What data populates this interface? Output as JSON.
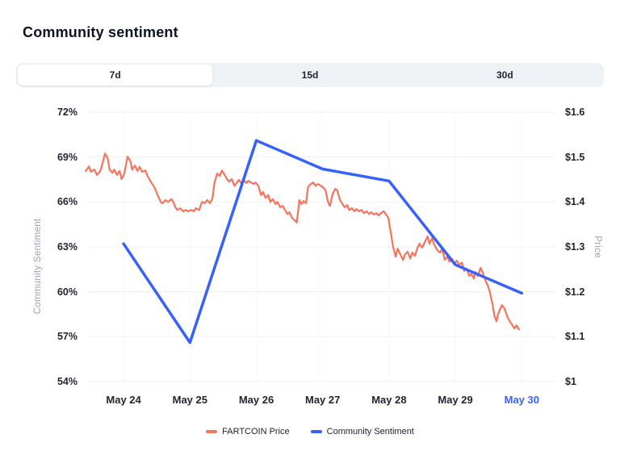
{
  "title": "Community sentiment",
  "tabs": [
    {
      "label": "7d",
      "active": true
    },
    {
      "label": "15d",
      "active": false
    },
    {
      "label": "30d",
      "active": false
    }
  ],
  "legend": {
    "items": [
      "FARTCOIN Price",
      "Community Sentiment"
    ]
  },
  "chart_data": {
    "type": "line",
    "title": "Community sentiment",
    "ylabel_left": "Community Sentiment",
    "ylabel_right": "Price",
    "grid": true,
    "legend_position": "bottom",
    "x_categories": [
      "May 24",
      "May 25",
      "May 26",
      "May 27",
      "May 28",
      "May 29",
      "May 30"
    ],
    "x_highlight_index": 6,
    "x_highlight_color": "#3861fb",
    "ylim_left": [
      54,
      72
    ],
    "ylim_right": [
      1.0,
      1.6
    ],
    "yticks_left": {
      "values": [
        72,
        69,
        66,
        63,
        60,
        57,
        54
      ],
      "labels": [
        "72%",
        "69%",
        "66%",
        "63%",
        "60%",
        "57%",
        "54%"
      ]
    },
    "yticks_right": {
      "values": [
        1.6,
        1.5,
        1.4,
        1.3,
        1.2,
        1.1,
        1.0
      ],
      "labels": [
        "$1.6",
        "$1.5",
        "$1.4",
        "$1.3",
        "$1.2",
        "$1.1",
        "$1"
      ]
    },
    "grid_color": "#eff2f5",
    "grid_color_vertical": "#f6f8fa",
    "series": [
      {
        "name": "FARTCOIN Price",
        "axis": "right",
        "color": "#f4765e",
        "unit": "$",
        "points": [
          [
            -0.57,
            1.469
          ],
          [
            -0.52,
            1.479
          ],
          [
            -0.49,
            1.467
          ],
          [
            -0.44,
            1.472
          ],
          [
            -0.4,
            1.46
          ],
          [
            -0.35,
            1.469
          ],
          [
            -0.32,
            1.485
          ],
          [
            -0.28,
            1.508
          ],
          [
            -0.24,
            1.497
          ],
          [
            -0.21,
            1.472
          ],
          [
            -0.17,
            1.465
          ],
          [
            -0.14,
            1.472
          ],
          [
            -0.1,
            1.46
          ],
          [
            -0.06,
            1.469
          ],
          [
            -0.03,
            1.451
          ],
          [
            0.01,
            1.463
          ],
          [
            0.06,
            1.501
          ],
          [
            0.1,
            1.492
          ],
          [
            0.13,
            1.472
          ],
          [
            0.17,
            1.481
          ],
          [
            0.21,
            1.469
          ],
          [
            0.24,
            1.478
          ],
          [
            0.28,
            1.467
          ],
          [
            0.33,
            1.47
          ],
          [
            0.36,
            1.458
          ],
          [
            0.41,
            1.445
          ],
          [
            0.47,
            1.431
          ],
          [
            0.52,
            1.413
          ],
          [
            0.56,
            1.4
          ],
          [
            0.59,
            1.397
          ],
          [
            0.63,
            1.404
          ],
          [
            0.67,
            1.4
          ],
          [
            0.72,
            1.406
          ],
          [
            0.75,
            1.4
          ],
          [
            0.78,
            1.388
          ],
          [
            0.81,
            1.382
          ],
          [
            0.85,
            1.386
          ],
          [
            0.9,
            1.379
          ],
          [
            0.94,
            1.382
          ],
          [
            0.97,
            1.379
          ],
          [
            1.02,
            1.382
          ],
          [
            1.06,
            1.379
          ],
          [
            1.09,
            1.386
          ],
          [
            1.14,
            1.382
          ],
          [
            1.18,
            1.4
          ],
          [
            1.22,
            1.397
          ],
          [
            1.26,
            1.404
          ],
          [
            1.3,
            1.397
          ],
          [
            1.34,
            1.408
          ],
          [
            1.37,
            1.443
          ],
          [
            1.41,
            1.463
          ],
          [
            1.45,
            1.458
          ],
          [
            1.48,
            1.47
          ],
          [
            1.52,
            1.461
          ],
          [
            1.56,
            1.451
          ],
          [
            1.59,
            1.445
          ],
          [
            1.63,
            1.451
          ],
          [
            1.67,
            1.436
          ],
          [
            1.7,
            1.442
          ],
          [
            1.74,
            1.449
          ],
          [
            1.77,
            1.442
          ],
          [
            1.81,
            1.449
          ],
          [
            1.85,
            1.442
          ],
          [
            1.88,
            1.447
          ],
          [
            1.92,
            1.443
          ],
          [
            1.96,
            1.44
          ],
          [
            1.99,
            1.443
          ],
          [
            2.03,
            1.436
          ],
          [
            2.07,
            1.415
          ],
          [
            2.1,
            1.422
          ],
          [
            2.14,
            1.409
          ],
          [
            2.18,
            1.415
          ],
          [
            2.21,
            1.4
          ],
          [
            2.25,
            1.406
          ],
          [
            2.29,
            1.395
          ],
          [
            2.32,
            1.4
          ],
          [
            2.36,
            1.388
          ],
          [
            2.4,
            1.391
          ],
          [
            2.43,
            1.382
          ],
          [
            2.47,
            1.373
          ],
          [
            2.5,
            1.377
          ],
          [
            2.54,
            1.364
          ],
          [
            2.58,
            1.359
          ],
          [
            2.61,
            1.354
          ],
          [
            2.65,
            1.404
          ],
          [
            2.68,
            1.395
          ],
          [
            2.71,
            1.402
          ],
          [
            2.75,
            1.397
          ],
          [
            2.78,
            1.433
          ],
          [
            2.82,
            1.44
          ],
          [
            2.86,
            1.443
          ],
          [
            2.89,
            1.436
          ],
          [
            2.93,
            1.44
          ],
          [
            2.97,
            1.436
          ],
          [
            3.0,
            1.433
          ],
          [
            3.04,
            1.427
          ],
          [
            3.08,
            1.4
          ],
          [
            3.11,
            1.391
          ],
          [
            3.15,
            1.418
          ],
          [
            3.19,
            1.429
          ],
          [
            3.22,
            1.426
          ],
          [
            3.26,
            1.404
          ],
          [
            3.3,
            1.395
          ],
          [
            3.33,
            1.388
          ],
          [
            3.37,
            1.393
          ],
          [
            3.4,
            1.382
          ],
          [
            3.44,
            1.386
          ],
          [
            3.48,
            1.379
          ],
          [
            3.51,
            1.384
          ],
          [
            3.55,
            1.379
          ],
          [
            3.59,
            1.382
          ],
          [
            3.62,
            1.375
          ],
          [
            3.66,
            1.379
          ],
          [
            3.7,
            1.373
          ],
          [
            3.73,
            1.377
          ],
          [
            3.77,
            1.372
          ],
          [
            3.81,
            1.375
          ],
          [
            3.84,
            1.37
          ],
          [
            3.88,
            1.375
          ],
          [
            3.92,
            1.379
          ],
          [
            3.95,
            1.373
          ],
          [
            3.99,
            1.364
          ],
          [
            4.03,
            1.328
          ],
          [
            4.06,
            1.301
          ],
          [
            4.1,
            1.278
          ],
          [
            4.13,
            1.296
          ],
          [
            4.17,
            1.283
          ],
          [
            4.21,
            1.271
          ],
          [
            4.24,
            1.283
          ],
          [
            4.28,
            1.289
          ],
          [
            4.32,
            1.274
          ],
          [
            4.35,
            1.287
          ],
          [
            4.39,
            1.28
          ],
          [
            4.43,
            1.298
          ],
          [
            4.46,
            1.307
          ],
          [
            4.5,
            1.298
          ],
          [
            4.55,
            1.314
          ],
          [
            4.58,
            1.323
          ],
          [
            4.61,
            1.307
          ],
          [
            4.65,
            1.319
          ],
          [
            4.68,
            1.305
          ],
          [
            4.73,
            1.292
          ],
          [
            4.77,
            1.287
          ],
          [
            4.8,
            1.296
          ],
          [
            4.84,
            1.271
          ],
          [
            4.88,
            1.278
          ],
          [
            4.91,
            1.267
          ],
          [
            4.95,
            1.273
          ],
          [
            4.99,
            1.262
          ],
          [
            5.02,
            1.269
          ],
          [
            5.06,
            1.26
          ],
          [
            5.1,
            1.265
          ],
          [
            5.13,
            1.246
          ],
          [
            5.17,
            1.251
          ],
          [
            5.21,
            1.235
          ],
          [
            5.24,
            1.24
          ],
          [
            5.28,
            1.229
          ],
          [
            5.3,
            1.244
          ],
          [
            5.34,
            1.235
          ],
          [
            5.38,
            1.253
          ],
          [
            5.41,
            1.244
          ],
          [
            5.45,
            1.226
          ],
          [
            5.49,
            1.213
          ],
          [
            5.52,
            1.199
          ],
          [
            5.56,
            1.172
          ],
          [
            5.59,
            1.145
          ],
          [
            5.62,
            1.134
          ],
          [
            5.64,
            1.149
          ],
          [
            5.68,
            1.163
          ],
          [
            5.7,
            1.17
          ],
          [
            5.74,
            1.163
          ],
          [
            5.78,
            1.145
          ],
          [
            5.81,
            1.136
          ],
          [
            5.85,
            1.127
          ],
          [
            5.89,
            1.118
          ],
          [
            5.92,
            1.125
          ],
          [
            5.96,
            1.116
          ]
        ]
      },
      {
        "name": "Community Sentiment",
        "axis": "left",
        "color": "#3861fb",
        "unit": "%",
        "x": [
          0,
          1,
          2,
          3,
          4,
          5,
          6
        ],
        "values": [
          63.2,
          56.6,
          70.1,
          68.2,
          67.4,
          61.8,
          59.9
        ]
      }
    ]
  }
}
